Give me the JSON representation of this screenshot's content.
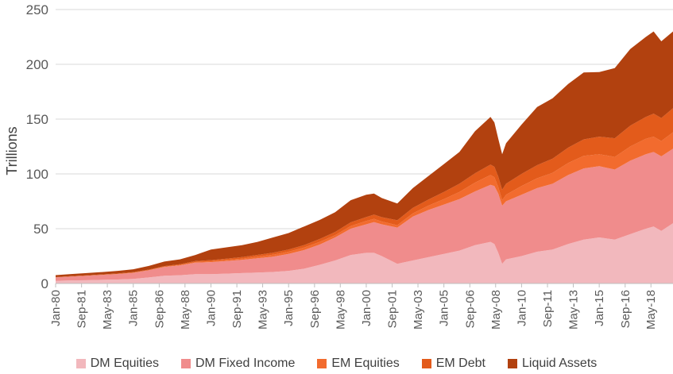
{
  "chart_data": {
    "type": "area",
    "stacked": true,
    "ylabel": "Trillions",
    "ylim": [
      0,
      250
    ],
    "yticks": [
      0,
      50,
      100,
      150,
      200,
      250
    ],
    "grid": true,
    "legend_position": "bottom",
    "x_range": [
      1980.0,
      2019.75
    ],
    "x_tick_labels": [
      "Jan-80",
      "Sep-81",
      "May-83",
      "Jan-85",
      "Sep-86",
      "May-88",
      "Jan-90",
      "Sep-91",
      "May-93",
      "Jan-95",
      "Sep-96",
      "May-98",
      "Jan-00",
      "Sep-01",
      "May-03",
      "Jan-05",
      "Sep-06",
      "May-08",
      "Jan-10",
      "Sep-11",
      "May-13",
      "Jan-15",
      "Sep-16",
      "May-18"
    ],
    "x_tick_positions": [
      1980.0,
      1981.67,
      1983.33,
      1985.0,
      1986.67,
      1988.33,
      1990.0,
      1991.67,
      1993.33,
      1995.0,
      1996.67,
      1998.33,
      2000.0,
      2001.67,
      2003.33,
      2005.0,
      2006.67,
      2008.33,
      2010.0,
      2011.67,
      2013.33,
      2015.0,
      2016.67,
      2018.33
    ],
    "x": [
      1980,
      1981,
      1982,
      1983,
      1984,
      1985,
      1986,
      1987,
      1988,
      1989,
      1990,
      1991,
      1992,
      1993,
      1994,
      1995,
      1996,
      1997,
      1998,
      1999,
      2000,
      2000.5,
      2001,
      2002,
      2003,
      2004,
      2005,
      2006,
      2007,
      2008,
      2008.25,
      2008.5,
      2008.75,
      2009,
      2010,
      2011,
      2012,
      2013,
      2014,
      2015,
      2016,
      2017,
      2018,
      2018.5,
      2019,
      2019.75
    ],
    "series": [
      {
        "name": "DM Equities",
        "color": "#F2B8BD",
        "values": [
          2.5,
          2.8,
          3,
          3.3,
          3.6,
          4.2,
          5.5,
          7,
          7.5,
          8.5,
          8.5,
          9,
          9.5,
          10,
          10.5,
          11.5,
          13.5,
          17,
          21,
          26,
          28,
          28,
          25,
          18,
          21,
          24,
          27,
          30,
          35,
          38,
          36,
          28,
          18,
          22,
          25,
          29,
          31,
          36,
          40,
          42,
          40,
          45,
          50,
          52,
          48,
          55
        ]
      },
      {
        "name": "DM Fixed Income",
        "color": "#F08C8C",
        "values": [
          3,
          3.5,
          4,
          4.5,
          5,
          5.5,
          6.5,
          8,
          9,
          10.5,
          11,
          11.5,
          12,
          13,
          14,
          15.5,
          17,
          18.5,
          21,
          24,
          26,
          28,
          29,
          33,
          40,
          43,
          45,
          47,
          49,
          52,
          53,
          54,
          53,
          53,
          56,
          58,
          60,
          63,
          65,
          65,
          64,
          67,
          68,
          68,
          68,
          68
        ]
      },
      {
        "name": "EM Equities",
        "color": "#F26B2E",
        "values": [
          0.1,
          0.1,
          0.1,
          0.1,
          0.1,
          0.15,
          0.2,
          0.3,
          0.4,
          0.6,
          0.8,
          1,
          1.2,
          1.5,
          1.8,
          2,
          2.3,
          2.5,
          2,
          2.5,
          3,
          3,
          2.5,
          2.2,
          3,
          4,
          5,
          6.5,
          8,
          9,
          8,
          6,
          5,
          6,
          8,
          9,
          10,
          11,
          11.5,
          11,
          11.5,
          13,
          14,
          14,
          14,
          15
        ]
      },
      {
        "name": "EM Debt",
        "color": "#E35B1B",
        "values": [
          0.2,
          0.25,
          0.3,
          0.35,
          0.4,
          0.45,
          0.5,
          0.6,
          0.7,
          0.8,
          1,
          1.2,
          1.4,
          1.6,
          1.8,
          2,
          2.3,
          2.6,
          3,
          3.3,
          3.6,
          3.8,
          4,
          4.5,
          5,
          5.5,
          6.5,
          7.5,
          8.5,
          9.5,
          9.5,
          9.5,
          9.5,
          10,
          11,
          12,
          13,
          14,
          15,
          16,
          17,
          19,
          20,
          21,
          21,
          22
        ]
      },
      {
        "name": "Liquid Assets",
        "color": "#B2410F",
        "values": [
          1.8,
          2,
          2.1,
          2.2,
          2.4,
          2.7,
          3.3,
          4.1,
          4.4,
          5.6,
          9.7,
          10.3,
          10.9,
          11.9,
          13.9,
          15,
          16.9,
          17.4,
          18,
          20.2,
          20.4,
          19.2,
          17.5,
          15.3,
          18,
          21.5,
          25.5,
          29,
          38.5,
          43.5,
          40.5,
          34.5,
          32.5,
          37,
          45,
          53,
          55,
          58,
          61,
          59,
          64,
          70,
          73,
          75,
          70,
          70
        ]
      }
    ]
  }
}
